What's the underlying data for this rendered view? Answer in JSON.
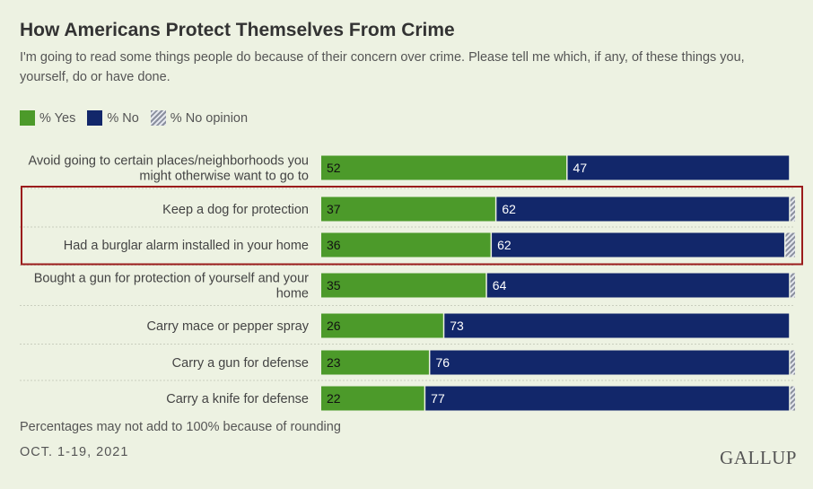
{
  "title": "How Americans Protect Themselves From Crime",
  "subtitle": "I'm going to read some things people do because of their concern over crime. Please tell me which, if any, of these things you, yourself, do or have done.",
  "legend": [
    {
      "label": "% Yes",
      "color": "#4c9a2a"
    },
    {
      "label": "% No",
      "color": "#12276a"
    },
    {
      "label": "% No opinion",
      "color": "#b3b8c8",
      "pattern": "hatched"
    }
  ],
  "footnote": "Percentages may not add to 100% because of rounding",
  "date": "OCT. 1-19, 2021",
  "logo": "GALLUP",
  "chart_data": {
    "type": "bar",
    "orientation": "horizontal",
    "stacked": true,
    "categories": [
      "Avoid going to certain places/neighborhoods you might otherwise want to go to",
      "Keep a dog for protection",
      "Had a burglar alarm installed in your home",
      "Bought a gun for protection of yourself and your home",
      "Carry mace or pepper spray",
      "Carry a gun for defense",
      "Carry a knife for defense"
    ],
    "series": [
      {
        "name": "% Yes",
        "values": [
          52,
          37,
          36,
          35,
          26,
          23,
          22
        ],
        "color": "#4c9a2a"
      },
      {
        "name": "% No",
        "values": [
          47,
          62,
          62,
          64,
          73,
          76,
          77
        ],
        "color": "#12276a"
      },
      {
        "name": "% No opinion",
        "values": [
          0,
          1,
          2,
          1,
          0,
          1,
          1
        ],
        "color": "#b3b8c8",
        "pattern": "hatched"
      }
    ],
    "xlim": [
      0,
      100
    ],
    "highlighted_categories": [
      "Keep a dog for protection",
      "Had a burglar alarm installed in your home"
    ],
    "highlight_color": "#9b1c1c"
  }
}
